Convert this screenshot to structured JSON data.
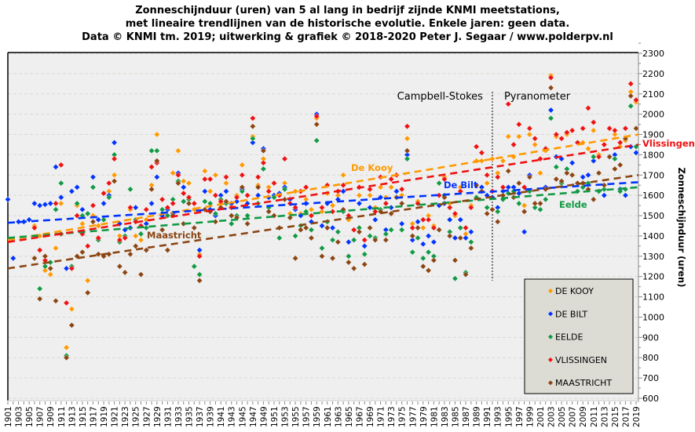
{
  "chart_data": {
    "type": "scatter",
    "title": [
      "Zonneschijnduur  (uren)  van 5 al lang in bedrijf zijnde KNMI  meetstations,",
      "met lineaire  trendlijnen  van de historische  evolutie.  Enkele jaren: geen data.",
      "Data © KNMI  tm. 2019; uitwerking  & grafiek © 2018-2020  Peter J. Segaar  / www.polderpv.nl"
    ],
    "ylabel": "Zonneschijnduur (uren)",
    "yaxis_side": "right",
    "ylim": [
      600,
      2300
    ],
    "ytick_step": 100,
    "xlim": [
      1901,
      2019
    ],
    "xtick_step": 2,
    "grid": true,
    "legend_placement": "bottom-right",
    "annotations": {
      "left_method": "Campbell-Stokes",
      "right_method": "Pyranometer",
      "method_change_year": 1992
    },
    "x_start": 1901,
    "series": [
      {
        "name": "DE KOOY",
        "trend_label": "De Kooy",
        "color": "#ff9900",
        "trend": [
          1380,
          1900
        ],
        "values": [
          null,
          null,
          null,
          null,
          null,
          1450,
          1400,
          1230,
          1210,
          1340,
          1560,
          850,
          1040,
          1550,
          1460,
          1180,
          1500,
          1450,
          1560,
          1620,
          1700,
          1400,
          1400,
          1530,
          1400,
          1380,
          1480,
          1650,
          1900,
          1580,
          1540,
          1710,
          1820,
          1670,
          1660,
          1530,
          1310,
          1720,
          1620,
          1700,
          1560,
          1660,
          1550,
          1600,
          1750,
          1600,
          1890,
          1650,
          1780,
          1640,
          1500,
          1610,
          1660,
          1510,
          1620,
          1510,
          1580,
          1530,
          1980,
          1520,
          1610,
          1550,
          1600,
          1700,
          1480,
          1430,
          1600,
          1380,
          1600,
          1540,
          1640,
          1590,
          1640,
          1700,
          1600,
          1880,
          1460,
          1570,
          1440,
          1500,
          1450,
          1600,
          1690,
          1560,
          1500,
          1640,
          1410,
          1550,
          1770,
          1770,
          1660,
          1780,
          1710,
          1770,
          1890,
          1790,
          1890,
          1550,
          1900,
          1850,
          1710,
          1820,
          2190,
          1890,
          1880,
          1900,
          1920,
          1860,
          1860,
          1830,
          1920,
          1800,
          1850,
          1930,
          1900,
          1840,
          1870,
          2110,
          2060
        ]
      },
      {
        "name": "DE BILT",
        "trend_label": "De Bilt",
        "color": "#0033ff",
        "trend": [
          1465,
          1665
        ],
        "values": [
          1580,
          1290,
          1470,
          1470,
          1480,
          1560,
          1550,
          1555,
          1560,
          1740,
          1590,
          1240,
          1620,
          1640,
          1530,
          1510,
          1690,
          1480,
          1560,
          1600,
          1860,
          1460,
          1430,
          1440,
          1540,
          1410,
          1460,
          1560,
          1690,
          1500,
          1530,
          1510,
          1710,
          1640,
          1590,
          1560,
          1330,
          1620,
          1530,
          1500,
          1600,
          1620,
          1560,
          1570,
          1630,
          1560,
          1860,
          1600,
          1830,
          1590,
          1600,
          1610,
          1640,
          1580,
          1530,
          1500,
          1560,
          1470,
          2000,
          1450,
          1560,
          1440,
          1580,
          1620,
          1370,
          1380,
          1560,
          1350,
          1540,
          1480,
          1590,
          1430,
          1540,
          1620,
          1460,
          1800,
          1380,
          1470,
          1360,
          1400,
          1370,
          1550,
          1560,
          1480,
          1390,
          1480,
          1390,
          1420,
          1650,
          1640,
          1600,
          1590,
          1540,
          1620,
          1640,
          1640,
          1610,
          1420,
          1700,
          1560,
          1560,
          1640,
          2020,
          1790,
          1780,
          1730,
          1760,
          1660,
          1690,
          1700,
          1770,
          1620,
          1600,
          1790,
          1800,
          1630,
          1600,
          1840,
          1810
        ]
      },
      {
        "name": "EELDE",
        "trend_label": "Eelde",
        "color": "#119944",
        "trend": [
          1390,
          1640
        ],
        "values": [
          null,
          null,
          null,
          null,
          null,
          null,
          1140,
          1250,
          1270,
          1530,
          1660,
          810,
          1250,
          1560,
          1500,
          1510,
          1640,
          1380,
          1480,
          1590,
          1800,
          1370,
          1400,
          1630,
          1480,
          1410,
          1440,
          1820,
          1820,
          1530,
          1500,
          1580,
          1670,
          1570,
          1580,
          1250,
          1210,
          1570,
          1560,
          1510,
          1580,
          1560,
          1460,
          1500,
          1620,
          1500,
          1880,
          1560,
          1730,
          1540,
          1590,
          1390,
          1630,
          1490,
          1400,
          1450,
          1520,
          1430,
          1870,
          1340,
          1470,
          1380,
          1420,
          1520,
          1300,
          1380,
          1440,
          1310,
          1400,
          1390,
          1530,
          1410,
          1430,
          1590,
          1430,
          1780,
          1320,
          1390,
          1290,
          1320,
          1300,
          1660,
          1600,
          1420,
          1190,
          1440,
          1220,
          1370,
          1590,
          1620,
          1540,
          1620,
          1520,
          1580,
          1610,
          1620,
          1560,
          1520,
          1620,
          1540,
          1530,
          1580,
          1980,
          1740,
          1660,
          1730,
          1700,
          1620,
          1640,
          1660,
          1790,
          1620,
          1630,
          1790,
          1780,
          1620,
          1630,
          2040,
          1840
        ]
      },
      {
        "name": "VLISSINGEN",
        "trend_label": "Vlissingen",
        "color": "#ee1111",
        "trend": [
          1370,
          1850
        ],
        "values": [
          null,
          null,
          null,
          null,
          null,
          1440,
          1330,
          1280,
          1240,
          1560,
          1750,
          1070,
          1240,
          1500,
          1410,
          1350,
          1550,
          1390,
          1610,
          1660,
          1780,
          1380,
          1390,
          1540,
          1470,
          1450,
          1530,
          1740,
          1760,
          1580,
          1540,
          1560,
          1700,
          1610,
          1590,
          1560,
          1300,
          1680,
          1680,
          1600,
          1570,
          1690,
          1540,
          1590,
          1700,
          1600,
          1980,
          1690,
          1760,
          1620,
          1660,
          1600,
          1780,
          1560,
          1540,
          1620,
          1640,
          1500,
          1990,
          1540,
          1650,
          1520,
          1620,
          1650,
          1500,
          1430,
          1640,
          1380,
          1630,
          1520,
          1690,
          1560,
          1680,
          1700,
          1630,
          1940,
          1440,
          1560,
          1480,
          1480,
          1440,
          1600,
          1680,
          1540,
          1510,
          1620,
          1440,
          1540,
          1840,
          1810,
          1700,
          1620,
          1690,
          1640,
          2050,
          1850,
          1950,
          1640,
          1930,
          1880,
          1780,
          1830,
          2180,
          1900,
          1880,
          1910,
          1920,
          1860,
          1930,
          2030,
          1960,
          1790,
          1850,
          1930,
          1920,
          1860,
          1930,
          2150,
          2070
        ]
      },
      {
        "name": "MAASTRICHT",
        "trend_label": "Maastricht",
        "color": "#8b4513",
        "trend": [
          1240,
          1700
        ],
        "values": [
          null,
          null,
          null,
          null,
          null,
          1290,
          1090,
          1300,
          1240,
          1080,
          1410,
          800,
          960,
          1300,
          1320,
          1120,
          1470,
          1310,
          1300,
          1310,
          1670,
          1250,
          1220,
          1310,
          1350,
          1210,
          1330,
          1630,
          1770,
          1430,
          1330,
          1500,
          1660,
          1460,
          1560,
          1440,
          1180,
          1530,
          1520,
          1470,
          1540,
          1570,
          1500,
          1490,
          1640,
          1460,
          1940,
          1640,
          1820,
          1520,
          1500,
          1440,
          1580,
          1490,
          1290,
          1430,
          1440,
          1390,
          1950,
          1300,
          1440,
          1290,
          1370,
          1530,
          1270,
          1240,
          1420,
          1260,
          1440,
          1380,
          1520,
          1380,
          1510,
          1590,
          1560,
          1820,
          1400,
          1440,
          1250,
          1230,
          1280,
          1430,
          1590,
          1400,
          1280,
          1390,
          1210,
          1340,
          1650,
          1620,
          1510,
          1530,
          1470,
          1600,
          1720,
          1590,
          1660,
          1520,
          1690,
          1560,
          1560,
          1630,
          2130,
          1680,
          1670,
          1710,
          1700,
          1660,
          1660,
          1630,
          1580,
          1710,
          1650,
          1790,
          1730,
          1750,
          1880,
          2090,
          1930
        ]
      }
    ]
  }
}
